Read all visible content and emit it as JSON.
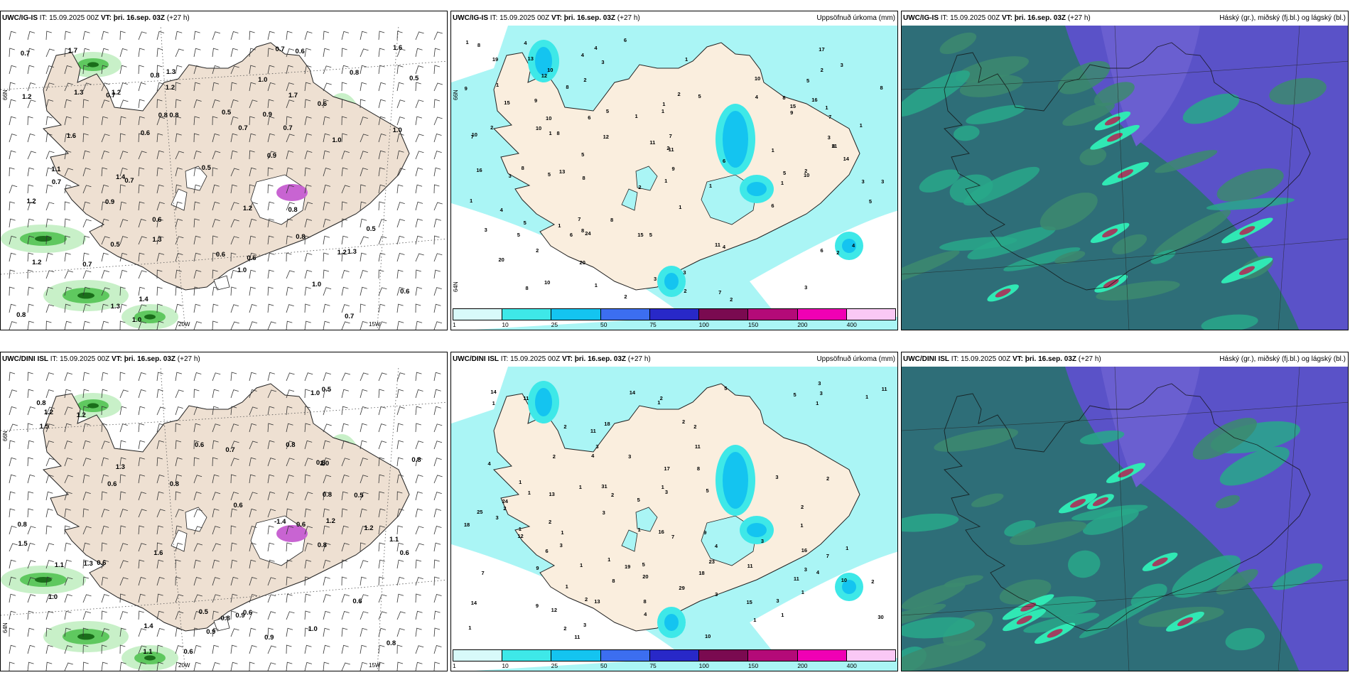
{
  "panels": [
    {
      "model": "UWC/IG-IS",
      "it": "IT: 15.09.2025 00Z",
      "vt": "VT: þri. 16.sep. 03Z",
      "lead": "(+27 h)",
      "right": "",
      "kind": "wind",
      "axes": {
        "lat_left": "66N",
        "lat_left2": "",
        "lon_mid": "20W",
        "lon_right": "15W"
      },
      "labels": [
        "0.7",
        "1.2",
        "0.6",
        "1.1",
        "1.3",
        "0.5",
        "0.8",
        "0.9",
        "1.3",
        "0.5",
        "0.9",
        "0.8",
        "1.7",
        "1.0",
        "0.7",
        "1.2",
        "1.0",
        "0.7",
        "0.9",
        "1.0",
        "1.4",
        "0.7",
        "1.2",
        "0.8",
        "1.0",
        "0.5",
        "0.6",
        "1.6",
        "0.6",
        "0.6",
        "0.6",
        "0.7",
        "0.7",
        "1.0",
        "0.8",
        "1.4",
        "1.6",
        "0.6",
        "0.7",
        "0.6",
        "1.3",
        "1.0",
        "0.7",
        "1.2",
        "1.3",
        "0.8",
        "1.2",
        "0.5",
        "0.5",
        "1.2",
        "0.8",
        "1.2",
        "1.3",
        "0.7",
        "0.8",
        "1.7"
      ]
    },
    {
      "model": "UWC/IG-IS",
      "it": "IT: 15.09.2025 00Z",
      "vt": "VT: þri. 16.sep. 03Z",
      "lead": "(+27 h)",
      "right": "Uppsöfnuð úrkoma (mm)",
      "kind": "precip",
      "axes": {
        "lat_left": "66N",
        "lat_left2": "64N"
      },
      "labels": [
        "10",
        "15",
        "11",
        "4",
        "24",
        "5",
        "10",
        "1",
        "2",
        "1",
        "4",
        "5",
        "3",
        "2",
        "1",
        "3",
        "1",
        "1",
        "1",
        "5",
        "3",
        "6",
        "8",
        "2",
        "1",
        "8",
        "8",
        "4",
        "7",
        "8",
        "6",
        "11",
        "9",
        "7",
        "10",
        "15",
        "4",
        "3",
        "1",
        "3",
        "7",
        "8",
        "2",
        "6",
        "8",
        "5",
        "12",
        "12",
        "4",
        "3",
        "9",
        "10",
        "11",
        "1",
        "8",
        "5",
        "20",
        "10",
        "13",
        "16",
        "15",
        "8",
        "10",
        "5",
        "17",
        "14",
        "13",
        "10",
        "11",
        "9",
        "7",
        "2",
        "1",
        "1",
        "2",
        "2",
        "3",
        "1",
        "4",
        "2",
        "6",
        "5",
        "7",
        "5",
        "8",
        "5",
        "4",
        "1",
        "9",
        "8",
        "1",
        "2",
        "6",
        "5",
        "6",
        "8",
        "20",
        "1",
        "2",
        "1",
        "3",
        "3",
        "2",
        "2",
        "1",
        "3",
        "19",
        "16"
      ],
      "cbar": {
        "ticks": [
          "1",
          "10",
          "25",
          "50",
          "75",
          "100",
          "150",
          "200",
          "400"
        ],
        "colors": [
          "#d8fafa",
          "#3ee8e8",
          "#14c4f0",
          "#3c6ef0",
          "#2828c8",
          "#7a0a50",
          "#b40a78",
          "#f000b4",
          "#fac8f5"
        ]
      }
    },
    {
      "model": "UWC/IG-IS",
      "it": "IT: 15.09.2025 00Z",
      "vt": "VT: þri. 16.sep. 03Z",
      "lead": "(+27 h)",
      "right": "Háský (gr.), miðský (fj.bl.) og lágský (bl.)",
      "kind": "cloud"
    },
    {
      "model": "UWC/DINI ISL",
      "it": "IT: 15.09.2025 00Z",
      "vt": "VT: þri. 16.sep. 03Z",
      "lead": "(+27 h)",
      "right": "",
      "kind": "wind",
      "axes": {
        "lat_left": "66N",
        "lat_left2": "64N",
        "lon_mid": "20W",
        "lon_right": "15W"
      },
      "labels": [
        "1.3",
        "0.6",
        "0.9",
        "1.6",
        "0.8",
        "0.6",
        "0.6",
        "0.8",
        "1.0",
        "0.8",
        "0.6",
        "0.9",
        "1.2",
        "0.5",
        "0.5",
        "0.9",
        "1.0",
        "1.1",
        "0.8",
        "1.2",
        "1.4",
        "1.2",
        "0.6",
        "1.3",
        "1.1",
        "0.6",
        "1.5",
        "0.6",
        "0.8",
        "1.0",
        "0.8",
        "0.7",
        "-1.4",
        "0.8",
        "0.8",
        "1.1",
        "1.5",
        "0.8",
        "0.8",
        "1.2",
        "1.0",
        "0.6",
        "0.5",
        "0.6"
      ]
    },
    {
      "model": "UWC/DINI ISL",
      "it": "IT: 15.09.2025 00Z",
      "vt": "VT: þri. 16.sep. 03Z",
      "lead": "(+27 h)",
      "right": "Uppsöfnuð úrkoma (mm)",
      "kind": "precip",
      "axes": {
        "lat_left": "",
        "lat_left2": ""
      },
      "labels": [
        "1",
        "3",
        "1",
        "2",
        "25",
        "19",
        "18",
        "2",
        "3",
        "5",
        "2",
        "2",
        "4",
        "2",
        "3",
        "10",
        "2",
        "3",
        "2",
        "5",
        "1",
        "2",
        "1",
        "1",
        "4",
        "1",
        "1",
        "20",
        "6",
        "3",
        "5",
        "11",
        "13",
        "16",
        "15",
        "23",
        "16",
        "10",
        "9",
        "12",
        "8",
        "13",
        "11",
        "30",
        "31",
        "24",
        "29",
        "18",
        "14",
        "17",
        "18",
        "14",
        "12",
        "11",
        "11",
        "7",
        "7",
        "5",
        "3",
        "1",
        "9",
        "8",
        "9",
        "8",
        "7",
        "3",
        "11",
        "1",
        "1",
        "1",
        "1",
        "14",
        "1",
        "2",
        "2",
        "1",
        "3",
        "1",
        "3",
        "3",
        "3",
        "4",
        "11",
        "11",
        "5",
        "3",
        "4",
        "1",
        "3",
        "3",
        "4",
        "1",
        "1",
        "2",
        "1",
        "2",
        "1",
        "2"
      ],
      "cbar": {
        "ticks": [
          "1",
          "10",
          "25",
          "50",
          "75",
          "100",
          "150",
          "200",
          "400"
        ],
        "colors": [
          "#d8fafa",
          "#3ee8e8",
          "#14c4f0",
          "#3c6ef0",
          "#2828c8",
          "#7a0a50",
          "#b40a78",
          "#f000b4",
          "#fac8f5"
        ]
      }
    },
    {
      "model": "UWC/DINI ISL",
      "it": "IT: 15.09.2025 00Z",
      "vt": "VT: þri. 16.sep. 03Z",
      "lead": "(+27 h)",
      "right": "Háský (gr.), miðský (fj.bl.) og lágský (bl.)",
      "kind": "cloud"
    }
  ]
}
